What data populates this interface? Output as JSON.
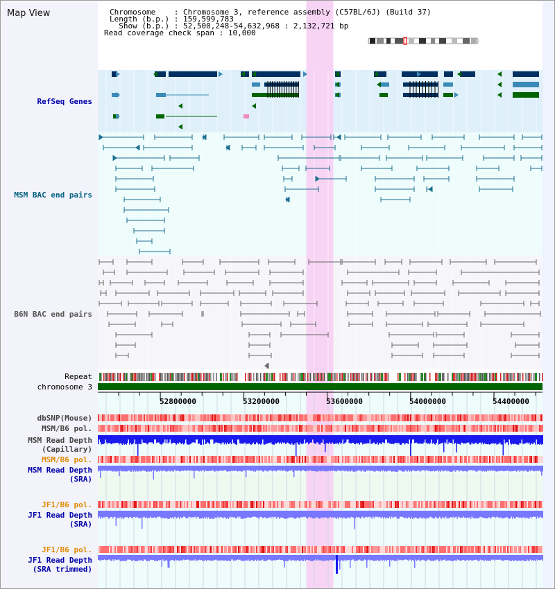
{
  "title": "Map View",
  "header": {
    "lines": [
      {
        "key": "Chromosome    ",
        "value": "Chromosome 3, reference assembly (C57BL/6J) (Build 37)"
      },
      {
        "key": "Length (b.p.) ",
        "value": "159,599,783"
      },
      {
        "key": "  Show (b.p.) ",
        "value": "52,500,248-54,632,968 : 2,132,721 bp"
      },
      {
        "key": "Read coverage check span ",
        "value": "10,000"
      }
    ]
  },
  "tracks": [
    {
      "id": "refseq",
      "label": "RefSeq Genes",
      "color": "#0000aa"
    },
    {
      "id": "msm-bac",
      "label": "MSM BAC end pairs",
      "color": "#006080"
    },
    {
      "id": "b6n-bac",
      "label": "B6N BAC end pairs",
      "color": "#555555"
    },
    {
      "id": "repeat",
      "label": "Repeat",
      "color": "#000000"
    },
    {
      "id": "chromosome",
      "label": "chromosome 3",
      "color": "#000000"
    },
    {
      "id": "dbsnp",
      "label": "dbSNP(Mouse)",
      "color": "#444444"
    },
    {
      "id": "msm-b6-pol-1",
      "label": "MSM/B6 pol.",
      "color": "#444444"
    },
    {
      "id": "msm-depth-cap",
      "label": "MSM Read Depth",
      "color": "#444444"
    },
    {
      "id": "msm-depth-cap-2",
      "label": "(Capillary)",
      "color": "#444444"
    },
    {
      "id": "msm-b6-pol-2",
      "label": "MSM/B6 pol.",
      "color": "#e08a00"
    },
    {
      "id": "msm-depth-sra",
      "label": "MSM Read Depth",
      "color": "#0000aa"
    },
    {
      "id": "msm-depth-sra-2",
      "label": "(SRA)",
      "color": "#0000aa"
    },
    {
      "id": "jf1-b6-pol",
      "label": "JF1/B6 pol.",
      "color": "#e08a00"
    },
    {
      "id": "jf1-depth-sra",
      "label": "JF1 Read Depth",
      "color": "#0000aa"
    },
    {
      "id": "jf1-depth-sra-2",
      "label": "(SRA)",
      "color": "#0000aa"
    },
    {
      "id": "jf1-b6-pol-2",
      "label": "JF1/B6 pol.",
      "color": "#e08a00"
    },
    {
      "id": "jf1-depth-trim",
      "label": "JF1 Read Depth",
      "color": "#0000aa"
    },
    {
      "id": "jf1-depth-trim-2",
      "label": "(SRA trimmed)",
      "color": "#0000aa"
    }
  ],
  "axis": {
    "start": 52500248,
    "end": 54632968,
    "ticks": [
      "52800000",
      "53200000",
      "53600000",
      "54000000",
      "54400000"
    ]
  },
  "highlight": {
    "start": 53500000,
    "end": 53630000
  },
  "colors": {
    "gene_dark": "#00305f",
    "gene_mid": "#3a8ab8",
    "gene_green": "#006400",
    "msm_pair": "#1a6e8e",
    "b6n_pair": "#666666",
    "chromosome": "#006400",
    "highlight": "#f7d4f4",
    "read_depth": "#1a1aee",
    "read_depth_light": "#7777ff"
  }
}
